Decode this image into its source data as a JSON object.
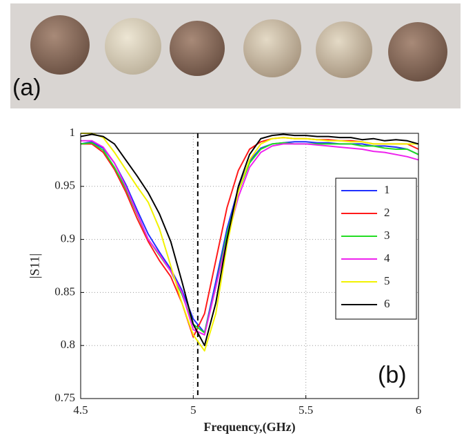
{
  "photo": {
    "label": "(a)"
  },
  "chart_data": {
    "type": "line",
    "panel_label": "(b)",
    "xlabel": "Frequency,(GHz)",
    "ylabel": "|S11|",
    "x": [
      4.5,
      4.55,
      4.6,
      4.65,
      4.7,
      4.75,
      4.8,
      4.85,
      4.9,
      4.95,
      5,
      5.05,
      5.1,
      5.15,
      5.2,
      5.25,
      5.3,
      5.35,
      5.4,
      5.45,
      5.5,
      5.55,
      5.6,
      5.65,
      5.7,
      5.75,
      5.8,
      5.85,
      5.9,
      5.95,
      6
    ],
    "series": [
      {
        "name": "1",
        "color": "#1f2fff",
        "values": [
          0.99,
          0.992,
          0.986,
          0.972,
          0.952,
          0.928,
          0.905,
          0.888,
          0.872,
          0.852,
          0.825,
          0.812,
          0.86,
          0.91,
          0.948,
          0.974,
          0.986,
          0.99,
          0.991,
          0.992,
          0.992,
          0.991,
          0.991,
          0.99,
          0.99,
          0.99,
          0.988,
          0.988,
          0.987,
          0.985,
          0.98
        ]
      },
      {
        "name": "2",
        "color": "#ff1a1a",
        "values": [
          0.99,
          0.99,
          0.982,
          0.966,
          0.945,
          0.92,
          0.898,
          0.88,
          0.865,
          0.84,
          0.808,
          0.83,
          0.88,
          0.93,
          0.965,
          0.985,
          0.992,
          0.995,
          0.996,
          0.995,
          0.995,
          0.994,
          0.994,
          0.993,
          0.993,
          0.992,
          0.99,
          0.99,
          0.99,
          0.99,
          0.985
        ]
      },
      {
        "name": "3",
        "color": "#22dd22",
        "values": [
          0.99,
          0.991,
          0.984,
          0.968,
          0.948,
          0.924,
          0.9,
          0.885,
          0.87,
          0.848,
          0.82,
          0.812,
          0.855,
          0.905,
          0.945,
          0.972,
          0.985,
          0.99,
          0.991,
          0.99,
          0.99,
          0.99,
          0.99,
          0.99,
          0.99,
          0.988,
          0.988,
          0.986,
          0.985,
          0.985,
          0.98
        ]
      },
      {
        "name": "4",
        "color": "#ee22ee",
        "values": [
          0.993,
          0.993,
          0.987,
          0.972,
          0.95,
          0.925,
          0.9,
          0.886,
          0.87,
          0.85,
          0.815,
          0.81,
          0.855,
          0.9,
          0.94,
          0.968,
          0.982,
          0.988,
          0.99,
          0.99,
          0.99,
          0.989,
          0.988,
          0.987,
          0.986,
          0.985,
          0.983,
          0.982,
          0.98,
          0.978,
          0.975
        ]
      },
      {
        "name": "5",
        "color": "#f2f200",
        "values": [
          1,
          1,
          0.996,
          0.982,
          0.966,
          0.95,
          0.935,
          0.91,
          0.875,
          0.84,
          0.81,
          0.795,
          0.83,
          0.895,
          0.945,
          0.975,
          0.99,
          0.995,
          0.996,
          0.995,
          0.995,
          0.994,
          0.993,
          0.993,
          0.992,
          0.992,
          0.99,
          0.99,
          0.99,
          0.99,
          0.99
        ]
      },
      {
        "name": "6",
        "color": "#000000",
        "values": [
          0.997,
          0.999,
          0.997,
          0.99,
          0.975,
          0.96,
          0.944,
          0.924,
          0.898,
          0.86,
          0.82,
          0.8,
          0.84,
          0.9,
          0.95,
          0.98,
          0.995,
          0.998,
          0.999,
          0.998,
          0.998,
          0.997,
          0.997,
          0.996,
          0.996,
          0.994,
          0.995,
          0.993,
          0.994,
          0.993,
          0.99
        ]
      }
    ],
    "vline": 5.02,
    "xlim": [
      4.5,
      6
    ],
    "xticks": [
      4.5,
      5,
      5.5,
      6
    ],
    "ylim": [
      0.75,
      1
    ],
    "yticks": [
      0.75,
      0.8,
      0.85,
      0.9,
      0.95,
      1
    ],
    "grid": true,
    "legend": "center right"
  }
}
